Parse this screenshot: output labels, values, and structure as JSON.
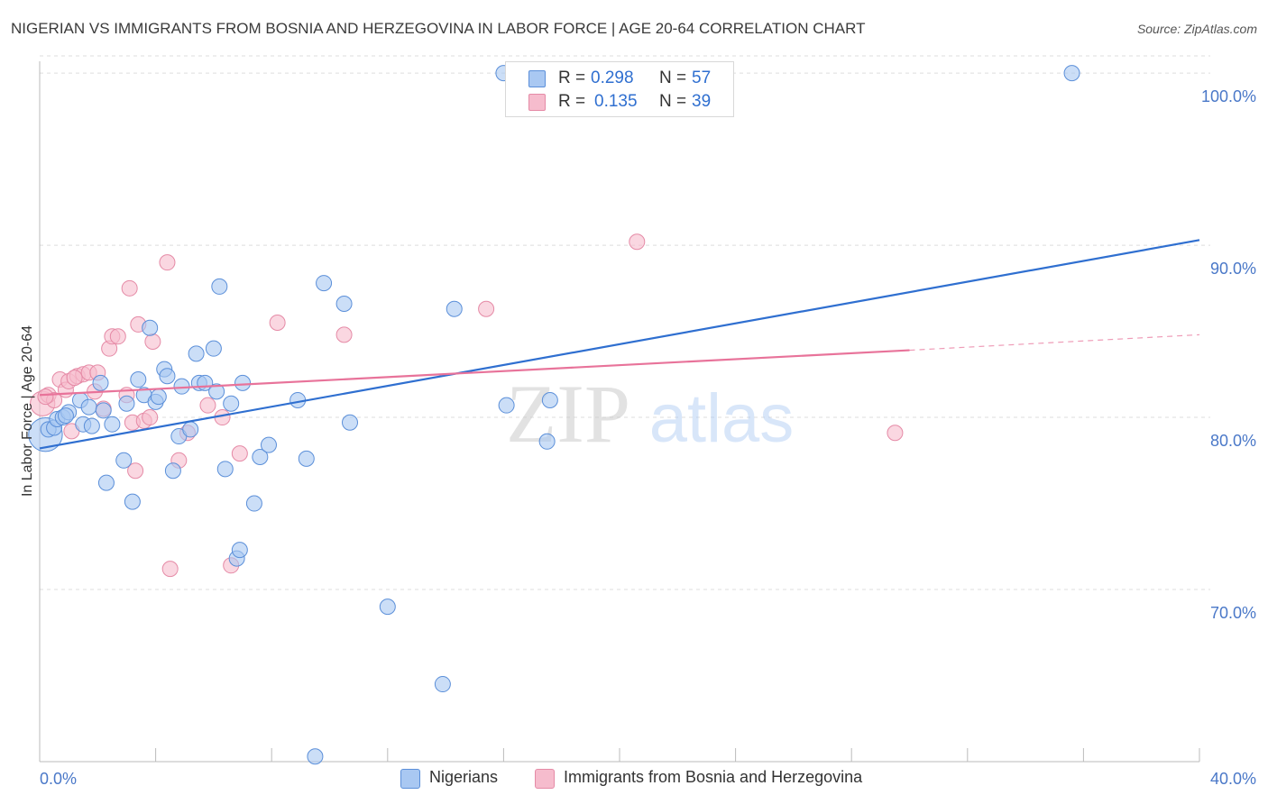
{
  "title": "NIGERIAN VS IMMIGRANTS FROM BOSNIA AND HERZEGOVINA IN LABOR FORCE | AGE 20-64 CORRELATION CHART",
  "source": "Source: ZipAtlas.com",
  "watermark": {
    "zip": "ZIP",
    "atlas": "atlas"
  },
  "colors": {
    "blue_fill": "#a9c8f2",
    "blue_stroke": "#5b8fd9",
    "blue_line": "#2f6fd0",
    "pink_fill": "#f6bccd",
    "pink_stroke": "#e58aa6",
    "pink_line": "#e8739a",
    "axis_text": "#4a78c8",
    "grid": "#dddddd"
  },
  "legend": {
    "r_label": "R =",
    "n_label": "N =",
    "series": [
      {
        "name": "Nigerians",
        "r": "0.298",
        "n": "57"
      },
      {
        "name": "Immigrants from Bosnia and Herzegovina",
        "r": "0.135",
        "n": "39"
      }
    ]
  },
  "chart_data": {
    "type": "scatter",
    "title": "NIGERIAN VS IMMIGRANTS FROM BOSNIA AND HERZEGOVINA IN LABOR FORCE | AGE 20-64 CORRELATION CHART",
    "xlabel": "",
    "ylabel": "In Labor Force | Age 20-64",
    "xlim": [
      0,
      40
    ],
    "ylim": [
      60,
      101
    ],
    "x_tick_labels": [
      "0.0%",
      "40.0%"
    ],
    "y_ticks": [
      70,
      80,
      90,
      100
    ],
    "y_tick_labels": [
      "70.0%",
      "80.0%",
      "90.0%",
      "100.0%"
    ],
    "grid": true,
    "series": [
      {
        "name": "Nigerians",
        "color": "#a9c8f2",
        "trend": {
          "x": [
            0,
            40
          ],
          "y": [
            78.2,
            90.3
          ],
          "extrapolated_from": null
        },
        "points": [
          {
            "x": 0.2,
            "y": 79.0,
            "size": 2.2
          },
          {
            "x": 0.3,
            "y": 79.3
          },
          {
            "x": 0.5,
            "y": 79.4
          },
          {
            "x": 0.6,
            "y": 79.9
          },
          {
            "x": 0.8,
            "y": 80.0
          },
          {
            "x": 1.0,
            "y": 80.3
          },
          {
            "x": 1.4,
            "y": 81.0
          },
          {
            "x": 1.5,
            "y": 79.6
          },
          {
            "x": 1.7,
            "y": 80.6
          },
          {
            "x": 1.8,
            "y": 79.5
          },
          {
            "x": 2.1,
            "y": 82.0
          },
          {
            "x": 2.3,
            "y": 76.2
          },
          {
            "x": 2.5,
            "y": 79.6
          },
          {
            "x": 2.9,
            "y": 77.5
          },
          {
            "x": 3.0,
            "y": 80.8
          },
          {
            "x": 3.2,
            "y": 75.1
          },
          {
            "x": 3.4,
            "y": 82.2
          },
          {
            "x": 3.6,
            "y": 81.3
          },
          {
            "x": 3.8,
            "y": 85.2
          },
          {
            "x": 4.0,
            "y": 80.9
          },
          {
            "x": 4.1,
            "y": 81.2
          },
          {
            "x": 4.3,
            "y": 82.8
          },
          {
            "x": 4.4,
            "y": 82.4
          },
          {
            "x": 4.6,
            "y": 76.9
          },
          {
            "x": 4.8,
            "y": 78.9
          },
          {
            "x": 4.9,
            "y": 81.8
          },
          {
            "x": 5.2,
            "y": 79.3
          },
          {
            "x": 5.4,
            "y": 83.7
          },
          {
            "x": 5.5,
            "y": 82.0
          },
          {
            "x": 5.7,
            "y": 82.0
          },
          {
            "x": 6.0,
            "y": 84.0
          },
          {
            "x": 6.1,
            "y": 81.5
          },
          {
            "x": 6.2,
            "y": 87.6
          },
          {
            "x": 6.4,
            "y": 77.0
          },
          {
            "x": 6.6,
            "y": 80.8
          },
          {
            "x": 6.8,
            "y": 71.8
          },
          {
            "x": 6.9,
            "y": 72.3
          },
          {
            "x": 7.0,
            "y": 82.0
          },
          {
            "x": 7.4,
            "y": 75.0
          },
          {
            "x": 7.6,
            "y": 77.7
          },
          {
            "x": 7.9,
            "y": 78.4
          },
          {
            "x": 8.9,
            "y": 81.0
          },
          {
            "x": 9.2,
            "y": 77.6
          },
          {
            "x": 9.5,
            "y": 60.3
          },
          {
            "x": 9.8,
            "y": 87.8
          },
          {
            "x": 10.5,
            "y": 86.6
          },
          {
            "x": 10.7,
            "y": 79.7
          },
          {
            "x": 12.0,
            "y": 69.0
          },
          {
            "x": 13.9,
            "y": 64.5
          },
          {
            "x": 14.3,
            "y": 86.3
          },
          {
            "x": 16.0,
            "y": 100.0
          },
          {
            "x": 16.1,
            "y": 80.7
          },
          {
            "x": 17.5,
            "y": 78.6
          },
          {
            "x": 17.6,
            "y": 81.0
          },
          {
            "x": 35.6,
            "y": 100.0
          },
          {
            "x": 2.2,
            "y": 80.4
          },
          {
            "x": 0.9,
            "y": 80.1
          }
        ]
      },
      {
        "name": "Immigrants from Bosnia and Herzegovina",
        "color": "#f6bccd",
        "trend": {
          "x": [
            0,
            30
          ],
          "y": [
            81.3,
            83.9
          ],
          "dashed_to": [
            40,
            84.8
          ]
        },
        "points": [
          {
            "x": 0.1,
            "y": 80.8,
            "size": 1.6
          },
          {
            "x": 0.3,
            "y": 81.3
          },
          {
            "x": 0.5,
            "y": 81.0
          },
          {
            "x": 0.7,
            "y": 82.2
          },
          {
            "x": 0.9,
            "y": 81.6
          },
          {
            "x": 1.0,
            "y": 82.1
          },
          {
            "x": 1.1,
            "y": 79.2
          },
          {
            "x": 1.3,
            "y": 82.4
          },
          {
            "x": 1.5,
            "y": 82.5
          },
          {
            "x": 1.7,
            "y": 82.6
          },
          {
            "x": 1.9,
            "y": 81.5
          },
          {
            "x": 2.0,
            "y": 82.6
          },
          {
            "x": 2.2,
            "y": 80.5
          },
          {
            "x": 2.4,
            "y": 84.0
          },
          {
            "x": 2.5,
            "y": 84.7
          },
          {
            "x": 2.7,
            "y": 84.7
          },
          {
            "x": 3.0,
            "y": 81.3
          },
          {
            "x": 3.1,
            "y": 87.5
          },
          {
            "x": 3.2,
            "y": 79.7
          },
          {
            "x": 3.3,
            "y": 76.9
          },
          {
            "x": 3.4,
            "y": 85.4
          },
          {
            "x": 3.6,
            "y": 79.8
          },
          {
            "x": 3.8,
            "y": 80.0
          },
          {
            "x": 3.9,
            "y": 84.4
          },
          {
            "x": 4.4,
            "y": 89.0
          },
          {
            "x": 4.5,
            "y": 71.2
          },
          {
            "x": 4.8,
            "y": 77.5
          },
          {
            "x": 5.1,
            "y": 79.1
          },
          {
            "x": 5.8,
            "y": 80.7
          },
          {
            "x": 6.3,
            "y": 80.0
          },
          {
            "x": 6.6,
            "y": 71.4
          },
          {
            "x": 6.9,
            "y": 77.9
          },
          {
            "x": 8.2,
            "y": 85.5
          },
          {
            "x": 10.5,
            "y": 84.8
          },
          {
            "x": 15.4,
            "y": 86.3
          },
          {
            "x": 20.6,
            "y": 90.2
          },
          {
            "x": 29.5,
            "y": 79.1
          },
          {
            "x": 0.2,
            "y": 81.2
          },
          {
            "x": 1.2,
            "y": 82.3
          }
        ]
      }
    ]
  }
}
